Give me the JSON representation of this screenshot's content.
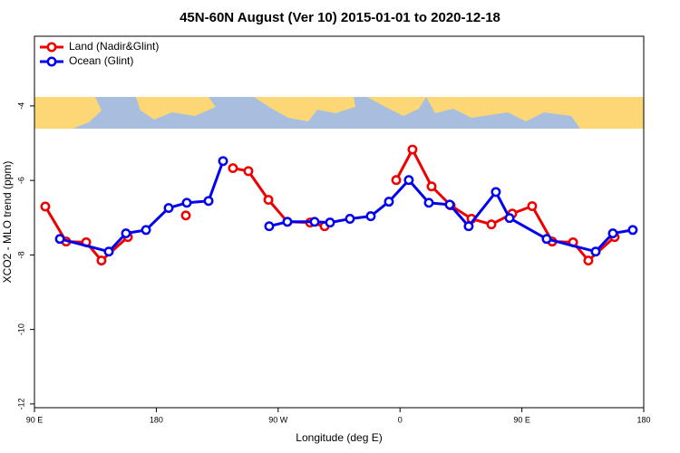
{
  "chart_data": {
    "type": "line",
    "title": "45N-60N August (Ver 10)   2015-01-01 to 2020-12-18",
    "x_label": "Longitude (deg E)",
    "y_label": "XCO2 - MLO trend (ppm)",
    "xlim": [
      90,
      540
    ],
    "ylim": [
      -12.1,
      -2.13
    ],
    "xticks": [
      {
        "value": 90,
        "label": "90 E"
      },
      180,
      {
        "value": 270,
        "label": "90 W"
      },
      {
        "value": 360,
        "label": "0"
      },
      {
        "value": 450,
        "label": "90 E"
      },
      {
        "value": 540,
        "label": "180"
      }
    ],
    "yticks": [
      -4,
      -6,
      -8,
      -10,
      -12
    ],
    "legend": "top-left",
    "series": [
      {
        "name": "Land (Nadir&Glint)",
        "color": "#ee0000",
        "x": [
          98,
          113.4,
          128.2,
          139.5,
          159,
          null,
          201.8,
          null,
          236.6,
          248,
          262.8,
          276.8,
          293.6,
          304.3,
          null,
          357.2,
          369.2,
          383.3,
          397.4,
          412.8,
          427.5,
          442.9,
          457.6,
          472.4,
          487.8,
          499.1,
          518.5
        ],
        "values": [
          -6.7,
          -7.64,
          -7.66,
          -8.15,
          -7.52,
          null,
          -6.94,
          null,
          -5.67,
          -5.75,
          -6.52,
          -7.11,
          -7.13,
          -7.23,
          null,
          -5.99,
          -5.17,
          -6.16,
          -6.67,
          -7.03,
          -7.18,
          -6.89,
          -6.69,
          -7.64,
          -7.66,
          -8.15,
          -7.52
        ]
      },
      {
        "name": "Ocean (Glint)",
        "color": "#0000ee",
        "x": [
          108.8,
          144.9,
          157.6,
          172.4,
          189.1,
          202.5,
          218.6,
          229.3,
          null,
          263.4,
          276.8,
          296.9,
          308.3,
          323,
          338.4,
          351.8,
          366.5,
          381.3,
          396.7,
          410.7,
          430.8,
          440.9,
          468.3,
          504.5,
          517.2,
          531.9
        ],
        "values": [
          -7.57,
          -7.91,
          -7.42,
          -7.33,
          -6.74,
          -6.6,
          -6.55,
          -5.48,
          null,
          -7.23,
          -7.11,
          -7.11,
          -7.13,
          -7.03,
          -6.96,
          -6.57,
          -5.99,
          -6.6,
          -6.65,
          -7.23,
          -6.31,
          -7.01,
          -7.57,
          -7.91,
          -7.42,
          -7.33
        ]
      }
    ]
  }
}
